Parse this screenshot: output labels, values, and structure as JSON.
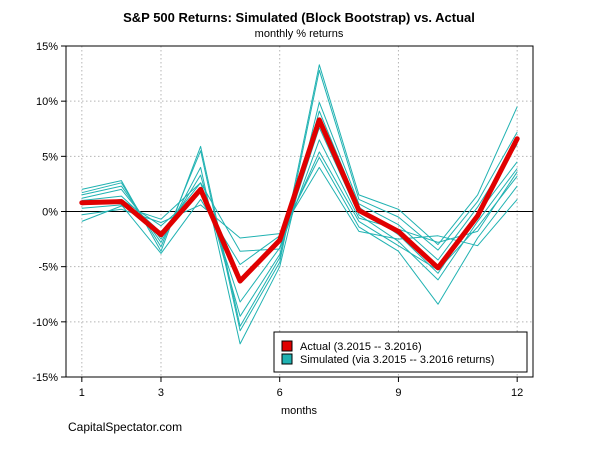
{
  "chart_data": {
    "type": "line",
    "title": "S&P 500 Returns: Simulated (Block Bootstrap) vs. Actual",
    "subtitle": "monthly % returns",
    "xlabel": "months",
    "ylabel": "",
    "source": "CapitalSpectator.com",
    "xlim": [
      0.6,
      12.4
    ],
    "ylim": [
      -15,
      15
    ],
    "x_ticks": [
      1,
      3,
      6,
      9,
      12
    ],
    "y_ticks": [
      -15,
      -10,
      -5,
      0,
      5,
      10,
      15
    ],
    "y_tick_labels": [
      "-15%",
      "-10%",
      "-5%",
      "0%",
      "5%",
      "10%",
      "15%"
    ],
    "x": [
      1,
      2,
      3,
      4,
      5,
      6,
      7,
      8,
      9,
      10,
      11,
      12
    ],
    "grid": true,
    "zero_line": true,
    "legend_position": "bottom-right",
    "colors": {
      "actual": "#e00000",
      "simulated": "#20b2b2"
    },
    "legend": [
      {
        "label": "Actual (3.2015 -- 3.2016)",
        "color": "#e00000"
      },
      {
        "label": "Simulated (via 3.2015 -- 3.2016 returns)",
        "color": "#20b2b2"
      }
    ],
    "actual": {
      "values": [
        0.8,
        0.9,
        -2.1,
        2.0,
        -6.3,
        -2.6,
        8.3,
        0.1,
        -1.8,
        -5.1,
        -0.4,
        6.6
      ]
    },
    "simulated": [
      {
        "values": [
          2.0,
          2.8,
          -3.6,
          5.9,
          -10.4,
          -4.2,
          13.3,
          1.5,
          0.2,
          -3.0,
          1.5,
          9.5
        ]
      },
      {
        "values": [
          1.7,
          2.6,
          -3.2,
          5.5,
          -10.8,
          -4.6,
          12.8,
          1.1,
          -0.5,
          -3.5,
          0.9,
          7.2
        ]
      },
      {
        "values": [
          1.5,
          2.3,
          -2.8,
          4.0,
          -12.0,
          -5.0,
          9.9,
          0.7,
          -1.2,
          -4.4,
          0.4,
          6.1
        ]
      },
      {
        "values": [
          1.2,
          2.0,
          -2.5,
          3.3,
          -9.5,
          -3.9,
          9.1,
          0.4,
          -2.1,
          -5.6,
          -0.2,
          4.5
        ]
      },
      {
        "values": [
          1.0,
          1.4,
          -1.9,
          2.6,
          -8.2,
          -3.3,
          7.6,
          -0.3,
          -2.7,
          -6.2,
          -0.9,
          3.9
        ]
      },
      {
        "values": [
          0.6,
          1.1,
          -1.3,
          1.8,
          -6.5,
          -2.6,
          5.4,
          -0.9,
          -3.1,
          -5.3,
          -1.4,
          3.2
        ]
      },
      {
        "values": [
          0.3,
          0.6,
          -3.8,
          1.1,
          -4.8,
          -2.2,
          4.9,
          -1.4,
          -3.6,
          -8.4,
          -2.4,
          2.3
        ]
      },
      {
        "values": [
          -0.3,
          0.2,
          -1.0,
          0.6,
          -2.4,
          -2.0,
          4.0,
          -1.8,
          -2.5,
          -2.2,
          -3.1,
          1.1
        ]
      },
      {
        "values": [
          -0.9,
          0.5,
          -0.7,
          2.6,
          -3.6,
          -3.4,
          6.5,
          -0.6,
          -1.6,
          -2.8,
          -1.8,
          3.6
        ]
      }
    ]
  }
}
